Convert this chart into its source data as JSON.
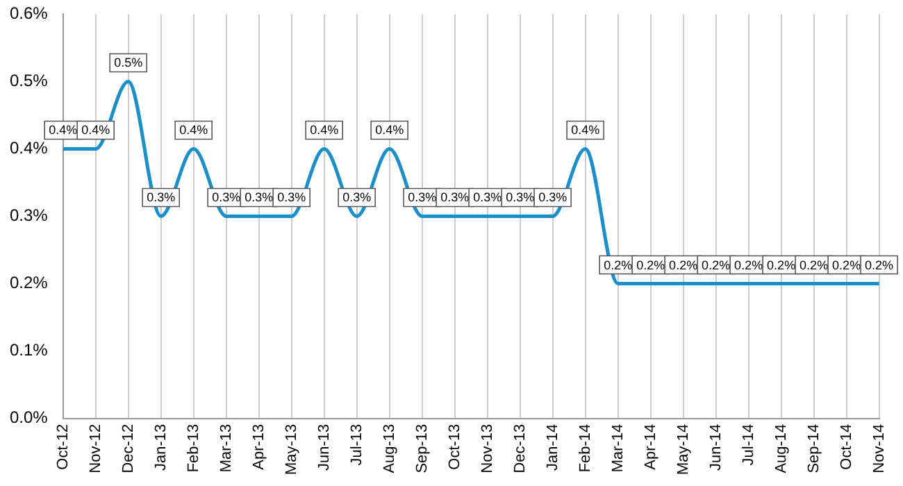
{
  "chart_data": {
    "type": "line",
    "categories": [
      "Oct-12",
      "Nov-12",
      "Dec-12",
      "Jan-13",
      "Feb-13",
      "Mar-13",
      "Apr-13",
      "May-13",
      "Jun-13",
      "Jul-13",
      "Aug-13",
      "Sep-13",
      "Oct-13",
      "Nov-13",
      "Dec-13",
      "Jan-14",
      "Feb-14",
      "Mar-14",
      "Apr-14",
      "May-14",
      "Jun-14",
      "Jul-14",
      "Aug-14",
      "Sep-14",
      "Oct-14",
      "Nov-14"
    ],
    "series": [
      {
        "color": "#1a8fc9",
        "values": [
          0.4,
          0.4,
          0.5,
          0.3,
          0.4,
          0.3,
          0.3,
          0.3,
          0.4,
          0.3,
          0.4,
          0.3,
          0.3,
          0.3,
          0.3,
          0.3,
          0.4,
          0.2,
          0.2,
          0.2,
          0.2,
          0.2,
          0.2,
          0.2,
          0.2,
          0.2
        ],
        "value_labels": [
          "0.4%",
          "0.4%",
          "0.5%",
          "0.3%",
          "0.4%",
          "0.3%",
          "0.3%",
          "0.3%",
          "0.4%",
          "0.3%",
          "0.4%",
          "0.3%",
          "0.3%",
          "0.3%",
          "0.3%",
          "0.3%",
          "0.4%",
          "0.2%",
          "0.2%",
          "0.2%",
          "0.2%",
          "0.2%",
          "0.2%",
          "0.2%",
          "0.2%",
          "0.2%"
        ]
      }
    ],
    "ylim": [
      0,
      0.6
    ],
    "yticks": [
      {
        "value": 0,
        "label": "0.0%"
      },
      {
        "value": 0.1,
        "label": "0.1%"
      },
      {
        "value": 0.2,
        "label": "0.2%"
      },
      {
        "value": 0.3,
        "label": "0.3%"
      },
      {
        "value": 0.4,
        "label": "0.4%"
      },
      {
        "value": 0.5,
        "label": "0.5%"
      },
      {
        "value": 0.6,
        "label": "0.6%"
      }
    ],
    "grid": "x",
    "legend": false,
    "marker": "none",
    "line_style": "solid"
  }
}
